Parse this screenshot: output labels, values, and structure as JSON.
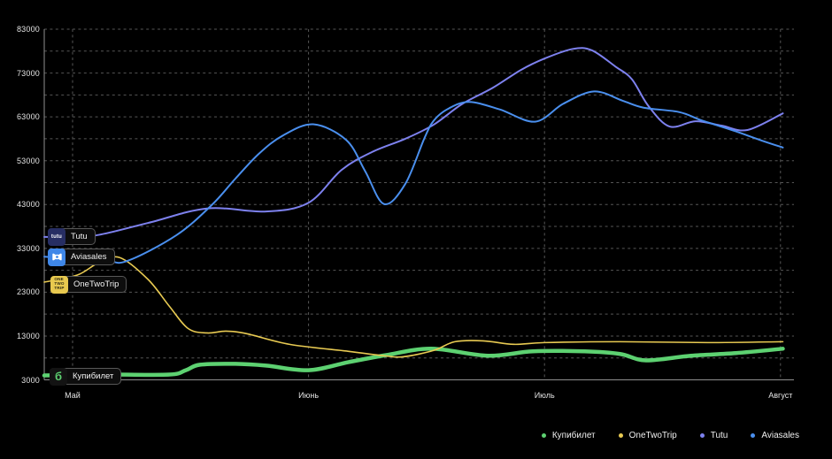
{
  "chart_data": {
    "type": "line",
    "title": "",
    "grid": "dashed",
    "x_axis": {
      "tick_labels": [
        "Май",
        "Июнь",
        "Июль",
        "Август"
      ],
      "tick_positions": [
        0,
        1,
        2,
        3
      ],
      "unit": "month"
    },
    "y_axis": {
      "tick_labels": [
        "3000",
        "13000",
        "23000",
        "33000",
        "43000",
        "53000",
        "63000",
        "73000",
        "83000"
      ],
      "tick_values": [
        3000,
        13000,
        23000,
        33000,
        43000,
        53000,
        63000,
        73000,
        83000
      ],
      "range": [
        3000,
        83000
      ],
      "grid_step": 5000
    },
    "series": [
      {
        "id": "kupibilet",
        "name": "Купибилет",
        "color": "#5dd171",
        "width": 4.5,
        "points": [
          [
            -0.12,
            4000
          ],
          [
            0.15,
            4200
          ],
          [
            0.41,
            4200
          ],
          [
            0.48,
            5200
          ],
          [
            0.54,
            6450
          ],
          [
            0.69,
            6650
          ],
          [
            0.82,
            6250
          ],
          [
            1.0,
            5200
          ],
          [
            1.17,
            7050
          ],
          [
            1.33,
            8650
          ],
          [
            1.52,
            10100
          ],
          [
            1.76,
            8500
          ],
          [
            1.95,
            9500
          ],
          [
            2.17,
            9500
          ],
          [
            2.32,
            8900
          ],
          [
            2.43,
            7450
          ],
          [
            2.62,
            8500
          ],
          [
            2.81,
            9100
          ],
          [
            3.01,
            10100
          ]
        ]
      },
      {
        "id": "onetwotrip",
        "name": "OneTwoTrip",
        "color": "#e8ca52",
        "width": 1.6,
        "points": [
          [
            -0.12,
            25300
          ],
          [
            0.02,
            26900
          ],
          [
            0.11,
            29700
          ],
          [
            0.2,
            30900
          ],
          [
            0.32,
            25900
          ],
          [
            0.41,
            19800
          ],
          [
            0.49,
            14700
          ],
          [
            0.57,
            13700
          ],
          [
            0.65,
            14100
          ],
          [
            0.74,
            13500
          ],
          [
            0.92,
            11100
          ],
          [
            1.17,
            9500
          ],
          [
            1.32,
            8500
          ],
          [
            1.4,
            8250
          ],
          [
            1.53,
            9700
          ],
          [
            1.62,
            11700
          ],
          [
            1.74,
            11900
          ],
          [
            1.87,
            11100
          ],
          [
            2.0,
            11500
          ],
          [
            2.32,
            11700
          ],
          [
            2.69,
            11500
          ],
          [
            3.01,
            11700
          ]
        ]
      },
      {
        "id": "tutu",
        "name": "Tutu",
        "color": "#7d81ee",
        "width": 2,
        "points": [
          [
            -0.12,
            35600
          ],
          [
            0.08,
            35800
          ],
          [
            0.32,
            38800
          ],
          [
            0.57,
            42100
          ],
          [
            0.82,
            41400
          ],
          [
            1.0,
            43400
          ],
          [
            1.14,
            50900
          ],
          [
            1.27,
            55000
          ],
          [
            1.41,
            58000
          ],
          [
            1.53,
            61200
          ],
          [
            1.65,
            65900
          ],
          [
            1.78,
            69600
          ],
          [
            1.9,
            73700
          ],
          [
            2.0,
            76300
          ],
          [
            2.12,
            78500
          ],
          [
            2.2,
            78200
          ],
          [
            2.3,
            74500
          ],
          [
            2.37,
            71600
          ],
          [
            2.44,
            65500
          ],
          [
            2.53,
            60800
          ],
          [
            2.64,
            62000
          ],
          [
            2.75,
            61000
          ],
          [
            2.86,
            60000
          ],
          [
            3.01,
            63800
          ]
        ]
      },
      {
        "id": "aviasales",
        "name": "Aviasales",
        "color": "#4a8fee",
        "width": 2,
        "points": [
          [
            -0.12,
            31100
          ],
          [
            0.13,
            30300
          ],
          [
            0.23,
            30100
          ],
          [
            0.44,
            36000
          ],
          [
            0.59,
            42900
          ],
          [
            0.69,
            48900
          ],
          [
            0.79,
            54600
          ],
          [
            0.89,
            58700
          ],
          [
            1.02,
            61300
          ],
          [
            1.16,
            57700
          ],
          [
            1.24,
            50600
          ],
          [
            1.32,
            43100
          ],
          [
            1.41,
            47700
          ],
          [
            1.49,
            58000
          ],
          [
            1.53,
            62100
          ],
          [
            1.59,
            64800
          ],
          [
            1.68,
            66400
          ],
          [
            1.81,
            64700
          ],
          [
            1.96,
            61900
          ],
          [
            2.08,
            66000
          ],
          [
            2.21,
            68800
          ],
          [
            2.33,
            66700
          ],
          [
            2.42,
            65100
          ],
          [
            2.57,
            64100
          ],
          [
            2.66,
            62300
          ],
          [
            2.73,
            61100
          ],
          [
            2.81,
            59700
          ],
          [
            2.92,
            57600
          ],
          [
            3.01,
            56000
          ]
        ]
      }
    ],
    "legend_position": "bottom-right"
  },
  "series_labels": [
    {
      "text": "Tutu",
      "icon_text": "tutu",
      "icon_bg": "#272e63",
      "icon_fg": "#ffffff"
    },
    {
      "text": "Aviasales",
      "icon_bg": "#3f87e8",
      "icon_fg": "#ffffff"
    },
    {
      "text": "OneTwoTrip",
      "icon_lines": [
        "ONE",
        "TWO",
        "TRIP"
      ],
      "icon_bg": "#e8c94f",
      "icon_fg": "#2e2a10"
    },
    {
      "text": "Купибилет",
      "icon_text": "б",
      "icon_bg": "#131313",
      "icon_fg": "#5dd171"
    }
  ],
  "legend": {
    "items": [
      {
        "label": "Купибилет",
        "color": "#5dd171"
      },
      {
        "label": "OneTwoTrip",
        "color": "#e8ca52"
      },
      {
        "label": "Tutu",
        "color": "#7d81ee"
      },
      {
        "label": "Aviasales",
        "color": "#4a8fee"
      }
    ]
  },
  "colors": {
    "background": "#000000",
    "axis": "#8f8f8f",
    "gridline": "#565656",
    "tick_text": "#e3e3e3"
  }
}
